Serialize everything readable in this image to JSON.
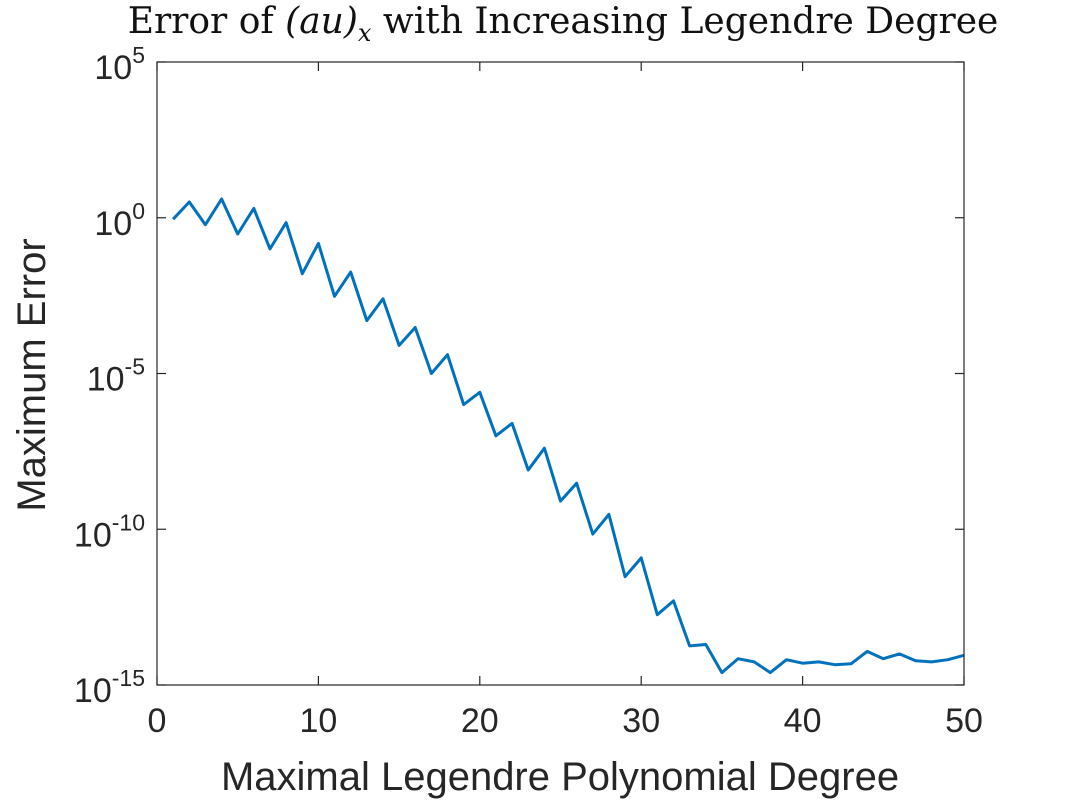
{
  "chart_data": {
    "type": "line",
    "title": {
      "prefix": "Error of ",
      "math": "(au)",
      "subscript": "x",
      "suffix": " with Increasing Legendre Degree"
    },
    "xlabel": "Maximal Legendre Polynomial Degree",
    "ylabel": "Maximum Error",
    "xlim": [
      0,
      50
    ],
    "ylim": [
      1e-15,
      100000.0
    ],
    "yscale": "log",
    "grid": false,
    "x_ticks": [
      "0",
      "10",
      "20",
      "30",
      "40",
      "50"
    ],
    "y_ticks": [
      {
        "base": "10",
        "exp": "5"
      },
      {
        "base": "10",
        "exp": "0"
      },
      {
        "base": "10",
        "exp": "-5"
      },
      {
        "base": "10",
        "exp": "-10"
      },
      {
        "base": "10",
        "exp": "-15"
      }
    ],
    "series": [
      {
        "color": "#0072BD",
        "x": [
          1,
          2,
          3,
          4,
          5,
          6,
          7,
          8,
          9,
          10,
          11,
          12,
          13,
          14,
          15,
          16,
          17,
          18,
          19,
          20,
          21,
          22,
          23,
          24,
          25,
          26,
          27,
          28,
          29,
          30,
          31,
          32,
          33,
          34,
          35,
          36,
          37,
          38,
          39,
          40,
          41,
          42,
          43,
          44,
          45,
          46,
          47,
          48,
          49,
          50
        ],
        "y": [
          0.9,
          3.2,
          0.6,
          4.0,
          0.3,
          2.0,
          0.1,
          0.7,
          0.016,
          0.15,
          0.003,
          0.018,
          0.0005,
          0.0025,
          8e-05,
          0.0003,
          1e-05,
          4e-05,
          1e-06,
          2.5e-06,
          1e-07,
          2.5e-07,
          8e-09,
          4e-08,
          8e-10,
          3e-09,
          7e-11,
          3e-10,
          3e-12,
          1.2e-11,
          1.8e-13,
          5e-13,
          1.8e-14,
          2e-14,
          2.5e-15,
          7e-15,
          5.5e-15,
          2.5e-15,
          6.5e-15,
          5e-15,
          5.5e-15,
          4.5e-15,
          4.8e-15,
          1.2e-14,
          7e-15,
          1e-14,
          6e-15,
          5.5e-15,
          6.5e-15,
          9e-15
        ]
      }
    ]
  }
}
